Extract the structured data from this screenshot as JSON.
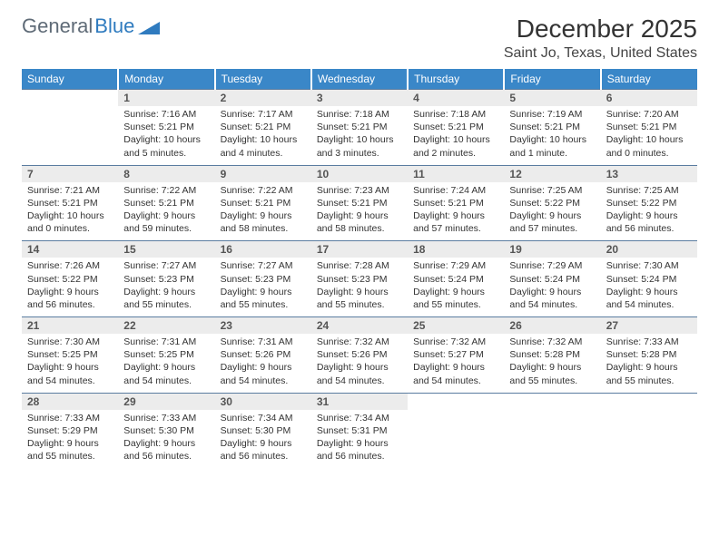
{
  "logo": {
    "text1": "General",
    "text2": "Blue"
  },
  "title": {
    "month": "December 2025",
    "location": "Saint Jo, Texas, United States"
  },
  "colors": {
    "header_bg": "#3a87c8",
    "header_text": "#ffffff",
    "daynum_bg": "#ececec",
    "daynum_border": "#5a7ca0",
    "body_text": "#333333",
    "logo_gray": "#5f6b77",
    "logo_blue": "#2f7bbf"
  },
  "days_of_week": [
    "Sunday",
    "Monday",
    "Tuesday",
    "Wednesday",
    "Thursday",
    "Friday",
    "Saturday"
  ],
  "weeks": [
    {
      "nums": [
        "",
        "1",
        "2",
        "3",
        "4",
        "5",
        "6"
      ],
      "cells": [
        null,
        {
          "sunrise": "7:16 AM",
          "sunset": "5:21 PM",
          "daylight": "10 hours and 5 minutes."
        },
        {
          "sunrise": "7:17 AM",
          "sunset": "5:21 PM",
          "daylight": "10 hours and 4 minutes."
        },
        {
          "sunrise": "7:18 AM",
          "sunset": "5:21 PM",
          "daylight": "10 hours and 3 minutes."
        },
        {
          "sunrise": "7:18 AM",
          "sunset": "5:21 PM",
          "daylight": "10 hours and 2 minutes."
        },
        {
          "sunrise": "7:19 AM",
          "sunset": "5:21 PM",
          "daylight": "10 hours and 1 minute."
        },
        {
          "sunrise": "7:20 AM",
          "sunset": "5:21 PM",
          "daylight": "10 hours and 0 minutes."
        }
      ]
    },
    {
      "nums": [
        "7",
        "8",
        "9",
        "10",
        "11",
        "12",
        "13"
      ],
      "cells": [
        {
          "sunrise": "7:21 AM",
          "sunset": "5:21 PM",
          "daylight": "10 hours and 0 minutes."
        },
        {
          "sunrise": "7:22 AM",
          "sunset": "5:21 PM",
          "daylight": "9 hours and 59 minutes."
        },
        {
          "sunrise": "7:22 AM",
          "sunset": "5:21 PM",
          "daylight": "9 hours and 58 minutes."
        },
        {
          "sunrise": "7:23 AM",
          "sunset": "5:21 PM",
          "daylight": "9 hours and 58 minutes."
        },
        {
          "sunrise": "7:24 AM",
          "sunset": "5:21 PM",
          "daylight": "9 hours and 57 minutes."
        },
        {
          "sunrise": "7:25 AM",
          "sunset": "5:22 PM",
          "daylight": "9 hours and 57 minutes."
        },
        {
          "sunrise": "7:25 AM",
          "sunset": "5:22 PM",
          "daylight": "9 hours and 56 minutes."
        }
      ]
    },
    {
      "nums": [
        "14",
        "15",
        "16",
        "17",
        "18",
        "19",
        "20"
      ],
      "cells": [
        {
          "sunrise": "7:26 AM",
          "sunset": "5:22 PM",
          "daylight": "9 hours and 56 minutes."
        },
        {
          "sunrise": "7:27 AM",
          "sunset": "5:23 PM",
          "daylight": "9 hours and 55 minutes."
        },
        {
          "sunrise": "7:27 AM",
          "sunset": "5:23 PM",
          "daylight": "9 hours and 55 minutes."
        },
        {
          "sunrise": "7:28 AM",
          "sunset": "5:23 PM",
          "daylight": "9 hours and 55 minutes."
        },
        {
          "sunrise": "7:29 AM",
          "sunset": "5:24 PM",
          "daylight": "9 hours and 55 minutes."
        },
        {
          "sunrise": "7:29 AM",
          "sunset": "5:24 PM",
          "daylight": "9 hours and 54 minutes."
        },
        {
          "sunrise": "7:30 AM",
          "sunset": "5:24 PM",
          "daylight": "9 hours and 54 minutes."
        }
      ]
    },
    {
      "nums": [
        "21",
        "22",
        "23",
        "24",
        "25",
        "26",
        "27"
      ],
      "cells": [
        {
          "sunrise": "7:30 AM",
          "sunset": "5:25 PM",
          "daylight": "9 hours and 54 minutes."
        },
        {
          "sunrise": "7:31 AM",
          "sunset": "5:25 PM",
          "daylight": "9 hours and 54 minutes."
        },
        {
          "sunrise": "7:31 AM",
          "sunset": "5:26 PM",
          "daylight": "9 hours and 54 minutes."
        },
        {
          "sunrise": "7:32 AM",
          "sunset": "5:26 PM",
          "daylight": "9 hours and 54 minutes."
        },
        {
          "sunrise": "7:32 AM",
          "sunset": "5:27 PM",
          "daylight": "9 hours and 54 minutes."
        },
        {
          "sunrise": "7:32 AM",
          "sunset": "5:28 PM",
          "daylight": "9 hours and 55 minutes."
        },
        {
          "sunrise": "7:33 AM",
          "sunset": "5:28 PM",
          "daylight": "9 hours and 55 minutes."
        }
      ]
    },
    {
      "nums": [
        "28",
        "29",
        "30",
        "31",
        "",
        "",
        ""
      ],
      "cells": [
        {
          "sunrise": "7:33 AM",
          "sunset": "5:29 PM",
          "daylight": "9 hours and 55 minutes."
        },
        {
          "sunrise": "7:33 AM",
          "sunset": "5:30 PM",
          "daylight": "9 hours and 56 minutes."
        },
        {
          "sunrise": "7:34 AM",
          "sunset": "5:30 PM",
          "daylight": "9 hours and 56 minutes."
        },
        {
          "sunrise": "7:34 AM",
          "sunset": "5:31 PM",
          "daylight": "9 hours and 56 minutes."
        },
        null,
        null,
        null
      ]
    }
  ],
  "labels": {
    "sunrise": "Sunrise: ",
    "sunset": "Sunset: ",
    "daylight": "Daylight: "
  }
}
